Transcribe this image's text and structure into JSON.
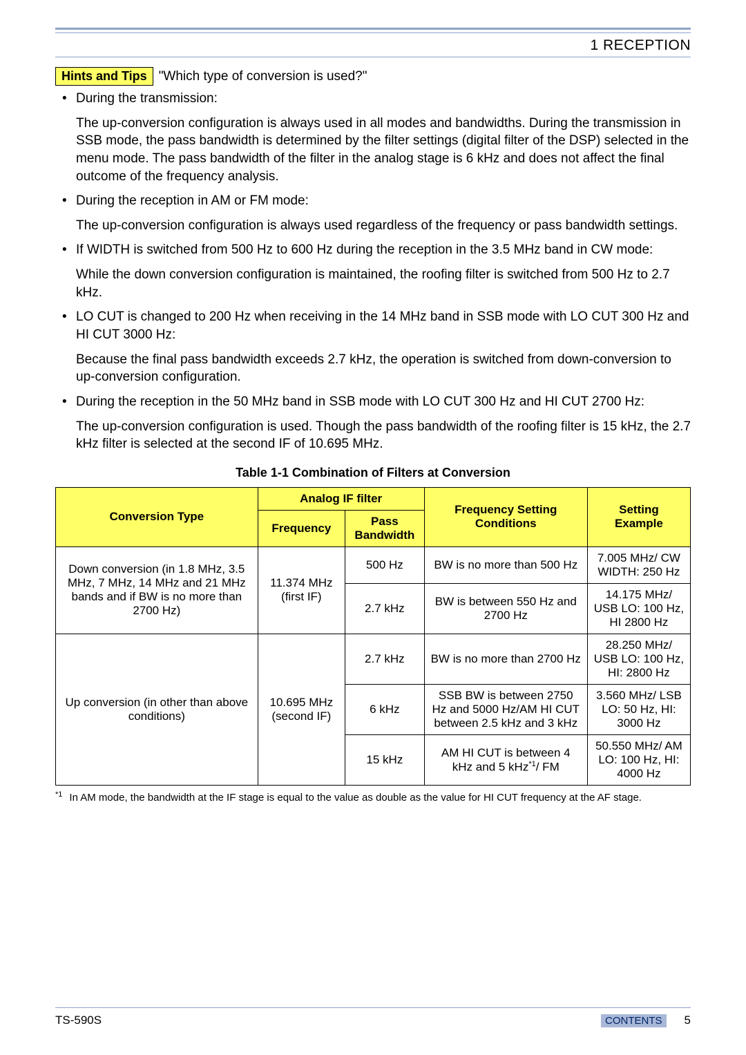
{
  "header": {
    "section_title": "1 RECEPTION"
  },
  "hints": {
    "badge": "Hints and Tips",
    "question": "\"Which type of conversion is used?\""
  },
  "bullets": [
    {
      "lead": "During the transmission:",
      "body": "The up-conversion configuration is always used in all modes and bandwidths.  During the transmission in SSB mode, the pass bandwidth is determined by the filter settings (digital filter of the DSP) selected in the menu mode.  The pass bandwidth of the filter in the analog stage is 6 kHz and does not affect the final outcome of the frequency analysis."
    },
    {
      "lead": "During the reception in AM or FM mode:",
      "body": "The up-conversion configuration is always used regardless of the frequency or pass bandwidth settings."
    },
    {
      "lead": "If WIDTH is switched from 500 Hz to 600 Hz during the reception in the 3.5 MHz band in CW mode:",
      "body": "While the down conversion configuration is maintained, the roofing filter is switched from 500 Hz to 2.7 kHz."
    },
    {
      "lead": "LO CUT is changed to 200 Hz when receiving in the 14 MHz band in SSB mode with LO CUT 300 Hz and HI CUT 3000 Hz:",
      "body": "Because the final pass bandwidth exceeds 2.7 kHz, the operation is switched from down-conversion to up-conversion configuration."
    },
    {
      "lead": "During the reception in the 50 MHz band in SSB mode with LO CUT 300 Hz and HI CUT 2700 Hz:",
      "body": "The up-conversion configuration is used.  Though the pass bandwidth of the roofing filter is 15 kHz, the 2.7 kHz filter is selected at the second IF of 10.695 MHz."
    }
  ],
  "table": {
    "caption": "Table 1-1   Combination of Filters at Conversion",
    "headers": {
      "conversion_type": "Conversion Type",
      "analog_if_filter": "Analog IF filter",
      "frequency": "Frequency",
      "pass_bandwidth": "Pass Bandwidth",
      "freq_setting_conditions": "Frequency Setting Conditions",
      "setting_example": "Setting Example"
    },
    "rows": [
      {
        "conversion": "Down conversion (in 1.8 MHz, 3.5 MHz, 7 MHz, 14 MHz and 21 MHz bands and if BW is no more than 2700 Hz)",
        "frequency": "11.374 MHz (first IF)",
        "pass_bw": "500 Hz",
        "conditions": "BW is no more than 500 Hz",
        "example": "7.005 MHz/ CW WIDTH: 250 Hz"
      },
      {
        "pass_bw": "2.7 kHz",
        "conditions": "BW is between 550 Hz and 2700 Hz",
        "example": "14.175 MHz/ USB LO: 100 Hz, HI 2800 Hz"
      },
      {
        "conversion": "Up conversion (in other than above conditions)",
        "frequency": "10.695 MHz (second IF)",
        "pass_bw": "2.7 kHz",
        "conditions": "BW is no more than 2700 Hz",
        "example": "28.250 MHz/ USB LO: 100 Hz, HI: 2800 Hz"
      },
      {
        "pass_bw": "6 kHz",
        "conditions": "SSB BW is between 2750 Hz and 5000 Hz/AM HI CUT between 2.5 kHz and 3 kHz",
        "example": "3.560 MHz/ LSB LO: 50 Hz, HI: 3000 Hz"
      },
      {
        "pass_bw": "15 kHz",
        "conditions_prefix": "AM HI CUT is between 4 kHz and 5 kHz",
        "conditions_sup": "*1",
        "conditions_suffix": "/ FM",
        "example": "50.550 MHz/ AM LO: 100 Hz, HI: 4000 Hz"
      }
    ],
    "footnote_marker": "*1",
    "footnote_text": "In AM mode, the bandwidth at the IF stage is equal to the value as double as the value for HI CUT frequency at the AF stage.",
    "colors": {
      "header_bg": "#ffff66",
      "border": "#000000",
      "rule": "#8da4c8"
    }
  },
  "footer": {
    "model": "TS-590S",
    "contents_label": "CONTENTS",
    "page_number": "5"
  }
}
